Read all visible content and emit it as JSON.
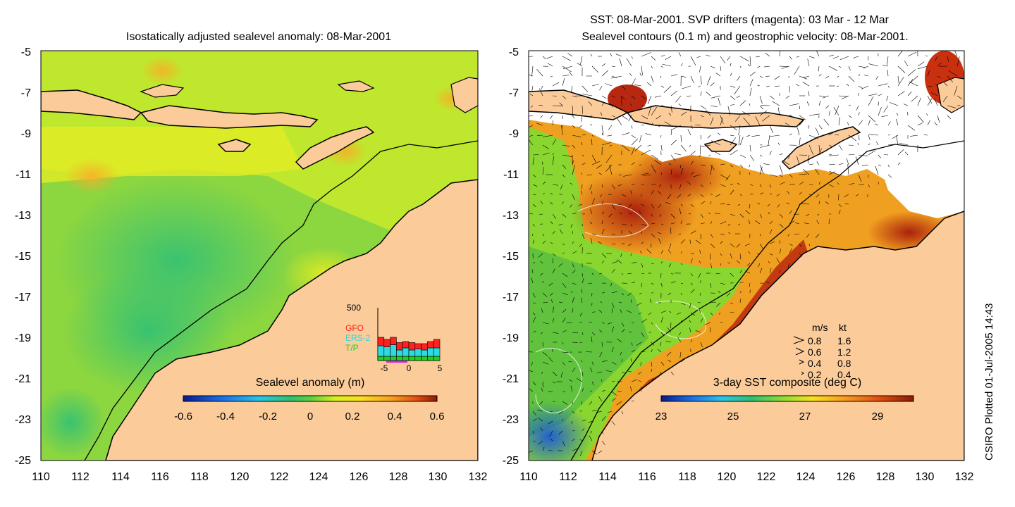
{
  "left_panel": {
    "title": "Isostatically adjusted sealevel anomaly: 08-Mar-2001",
    "x_ticks": [
      "110",
      "112",
      "114",
      "116",
      "118",
      "120",
      "122",
      "124",
      "126",
      "128",
      "130",
      "132"
    ],
    "y_ticks": [
      "-5",
      "-7",
      "-9",
      "-11",
      "-13",
      "-15",
      "-17",
      "-19",
      "-21",
      "-23",
      "-25"
    ],
    "colorbar": {
      "label": "Sealevel anomaly (m)",
      "ticks": [
        "-0.6",
        "-0.4",
        "-0.2",
        "0",
        "0.2",
        "0.4",
        "0.6"
      ],
      "range": [
        -0.6,
        0.6
      ]
    },
    "inset": {
      "ymax_label": "500",
      "x_ticks": [
        "-5",
        "0",
        "5"
      ],
      "legend": [
        {
          "name": "GFO",
          "color": "#ff2020"
        },
        {
          "name": "ERS-2",
          "color": "#30d8e0"
        },
        {
          "name": "T/P",
          "color": "#20d020"
        }
      ],
      "bars": [
        {
          "x": -4.5,
          "tp": 40,
          "ers": 100,
          "gfo": 80
        },
        {
          "x": -3.5,
          "tp": 40,
          "ers": 90,
          "gfo": 70
        },
        {
          "x": -2.5,
          "tp": 40,
          "ers": 110,
          "gfo": 70
        },
        {
          "x": -1.5,
          "tp": 40,
          "ers": 60,
          "gfo": 70
        },
        {
          "x": -0.5,
          "tp": 40,
          "ers": 80,
          "gfo": 60
        },
        {
          "x": 0.5,
          "tp": 40,
          "ers": 60,
          "gfo": 70
        },
        {
          "x": 1.5,
          "tp": 40,
          "ers": 70,
          "gfo": 50
        },
        {
          "x": 2.5,
          "tp": 40,
          "ers": 60,
          "gfo": 60
        },
        {
          "x": 3.5,
          "tp": 40,
          "ers": 80,
          "gfo": 60
        },
        {
          "x": 4.5,
          "tp": 40,
          "ers": 80,
          "gfo": 80
        }
      ]
    }
  },
  "right_panel": {
    "title_line1": "SST: 08-Mar-2001. SVP drifters (magenta): 03 Mar - 12 Mar",
    "title_line2": "Sealevel contours (0.1 m) and geostrophic velocity: 08-Mar-2001.",
    "x_ticks": [
      "110",
      "112",
      "114",
      "116",
      "118",
      "120",
      "122",
      "124",
      "126",
      "128",
      "130",
      "132"
    ],
    "y_ticks": [
      "-5",
      "-7",
      "-9",
      "-11",
      "-13",
      "-15",
      "-17",
      "-19",
      "-21",
      "-23",
      "-25"
    ],
    "colorbar": {
      "label": "3-day SST composite (deg C)",
      "ticks": [
        "23",
        "25",
        "27",
        "29"
      ],
      "range": [
        23,
        30
      ]
    },
    "speed_legend": {
      "header_ms": "m/s",
      "header_kt": "kt",
      "rows": [
        {
          "ms": "0.8",
          "kt": "1.6"
        },
        {
          "ms": "0.6",
          "kt": "1.2"
        },
        {
          "ms": "0.4",
          "kt": "0.8"
        },
        {
          "ms": "0.2",
          "kt": "0.4"
        }
      ]
    }
  },
  "credit": "CSIRO Plotted 01-Jul-2005 14:43",
  "map_extent": {
    "lon": [
      110,
      132
    ],
    "lat": [
      -25,
      -5
    ]
  },
  "colors": {
    "land": "#fbcb9a",
    "white_mask": "#ffffff",
    "coastline": "#000000"
  }
}
